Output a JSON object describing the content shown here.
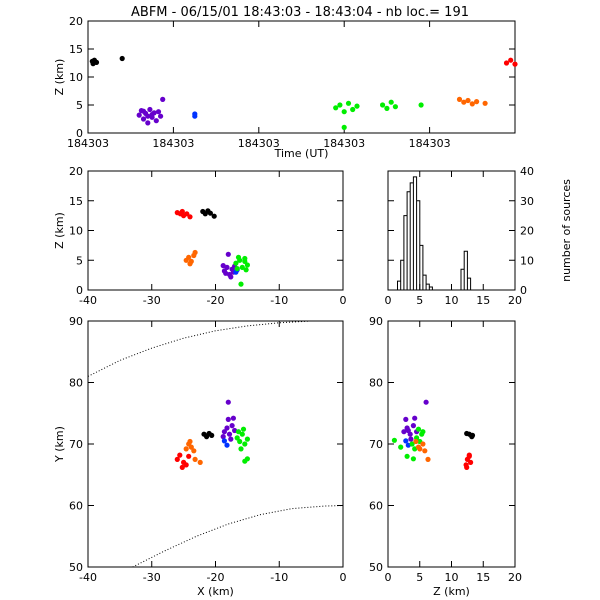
{
  "title": "ABFM - 06/15/01 18:43:03 - 18:43:04 - nb loc.=     191",
  "chart_data": [
    {
      "id": "time-height",
      "type": "scatter",
      "xlabel": "Time (UT)",
      "ylabel": "Z (km)",
      "ylim": [
        0,
        20
      ],
      "xlim": [
        0,
        1
      ],
      "yticks": [
        0,
        5,
        10,
        15,
        20
      ],
      "xticks": [
        {
          "v": 0.0,
          "label": "184303"
        },
        {
          "v": 0.2,
          "label": "184303"
        },
        {
          "v": 0.4,
          "label": "184303"
        },
        {
          "v": 0.6,
          "label": "184303"
        },
        {
          "v": 0.8,
          "label": "184303"
        }
      ],
      "series": [
        {
          "color": "#000000",
          "points": [
            [
              0.01,
              12.8
            ],
            [
              0.015,
              13.0
            ],
            [
              0.02,
              12.6
            ],
            [
              0.012,
              12.4
            ],
            [
              0.08,
              13.3
            ]
          ]
        },
        {
          "color": "#6600cc",
          "points": [
            [
              0.12,
              3.2
            ],
            [
              0.125,
              4.0
            ],
            [
              0.13,
              2.5
            ],
            [
              0.135,
              3.5
            ],
            [
              0.14,
              3.0
            ],
            [
              0.145,
              4.2
            ],
            [
              0.15,
              2.8
            ],
            [
              0.155,
              3.6
            ],
            [
              0.16,
              2.2
            ],
            [
              0.165,
              3.8
            ],
            [
              0.17,
              3.0
            ],
            [
              0.175,
              6.0
            ],
            [
              0.14,
              1.8
            ],
            [
              0.13,
              3.9
            ],
            [
              0.15,
              3.3
            ]
          ]
        },
        {
          "color": "#0033ff",
          "points": [
            [
              0.25,
              3.0
            ],
            [
              0.25,
              3.4
            ]
          ]
        },
        {
          "color": "#00ee00",
          "points": [
            [
              0.58,
              4.5
            ],
            [
              0.59,
              5.0
            ],
            [
              0.6,
              3.8
            ],
            [
              0.61,
              5.3
            ],
            [
              0.62,
              4.2
            ],
            [
              0.6,
              1.0
            ],
            [
              0.63,
              4.8
            ],
            [
              0.69,
              5.0
            ],
            [
              0.7,
              4.4
            ],
            [
              0.71,
              5.5
            ],
            [
              0.72,
              4.7
            ],
            [
              0.78,
              5.0
            ]
          ]
        },
        {
          "color": "#ff6600",
          "points": [
            [
              0.87,
              6.0
            ],
            [
              0.88,
              5.5
            ],
            [
              0.89,
              5.8
            ],
            [
              0.9,
              5.2
            ],
            [
              0.91,
              5.6
            ],
            [
              0.93,
              5.3
            ]
          ]
        },
        {
          "color": "#ff0000",
          "points": [
            [
              0.98,
              12.5
            ],
            [
              0.99,
              13.0
            ],
            [
              1.0,
              12.3
            ],
            [
              1.01,
              12.8
            ],
            [
              1.02,
              12.4
            ],
            [
              1.04,
              12.9
            ],
            [
              1.06,
              12.6
            ]
          ]
        }
      ]
    },
    {
      "id": "x-z",
      "type": "scatter",
      "xlabel": "",
      "ylabel": "Z (km)",
      "xlim": [
        -40,
        0
      ],
      "ylim": [
        0,
        20
      ],
      "xticks": [
        -40,
        -30,
        -20,
        -10,
        0
      ],
      "yticks": [
        0,
        5,
        10,
        15,
        20
      ],
      "series": [
        {
          "color": "#ff0000",
          "points": [
            [
              -26,
              13.0
            ],
            [
              -25.5,
              12.8
            ],
            [
              -25,
              12.5
            ],
            [
              -24.5,
              12.8
            ],
            [
              -24,
              12.3
            ],
            [
              -25.2,
              13.2
            ]
          ]
        },
        {
          "color": "#000000",
          "points": [
            [
              -22,
              13.2
            ],
            [
              -21.6,
              12.8
            ],
            [
              -21.2,
              13.3
            ],
            [
              -20.8,
              12.9
            ],
            [
              -20.2,
              12.4
            ]
          ]
        },
        {
          "color": "#6600cc",
          "points": [
            [
              -18.6,
              3.2
            ],
            [
              -18.2,
              3.8
            ],
            [
              -17.8,
              2.6
            ],
            [
              -17.4,
              3.5
            ],
            [
              -17.0,
              4.0
            ],
            [
              -17.6,
              2.2
            ],
            [
              -18.8,
              4.1
            ],
            [
              -17.2,
              3.0
            ],
            [
              -18.0,
              6.0
            ],
            [
              -18.4,
              2.8
            ]
          ]
        },
        {
          "color": "#0033ff",
          "points": [
            [
              -16.8,
              3.0
            ],
            [
              -16.6,
              3.4
            ]
          ]
        },
        {
          "color": "#00ee00",
          "points": [
            [
              -16.8,
              4.5
            ],
            [
              -16.2,
              5.0
            ],
            [
              -15.8,
              3.8
            ],
            [
              -15.4,
              5.3
            ],
            [
              -15.0,
              4.2
            ],
            [
              -16.0,
              1.0
            ],
            [
              -15.4,
              4.8
            ],
            [
              -16.4,
              5.5
            ],
            [
              -15.2,
              3.4
            ],
            [
              -16.6,
              3.6
            ]
          ]
        },
        {
          "color": "#ff6600",
          "points": [
            [
              -24.6,
              5.0
            ],
            [
              -24.2,
              5.5
            ],
            [
              -23.8,
              4.8
            ],
            [
              -23.4,
              5.8
            ],
            [
              -24.0,
              4.4
            ],
            [
              -23.2,
              6.3
            ]
          ]
        }
      ]
    },
    {
      "id": "height-histogram",
      "type": "bar",
      "xlabel": "",
      "ylabel": "number of sources",
      "xlim": [
        0,
        20
      ],
      "ylim": [
        0,
        40
      ],
      "xticks": [
        0,
        5,
        10,
        15,
        20
      ],
      "yticks": [
        0,
        10,
        20,
        30,
        40
      ],
      "bin_width": 0.5,
      "bins_start": [
        1.5,
        2.0,
        2.5,
        3.0,
        3.5,
        4.0,
        4.5,
        5.0,
        5.5,
        6.0,
        6.5,
        7.0,
        11.5,
        12.0,
        12.5,
        13.0
      ],
      "values": [
        3,
        10,
        25,
        33,
        36,
        38,
        30,
        15,
        5,
        2,
        1,
        0,
        7,
        13,
        4,
        0
      ]
    },
    {
      "id": "x-y",
      "type": "scatter",
      "xlabel": "X (km)",
      "ylabel": "Y (km)",
      "xlim": [
        -40,
        0
      ],
      "ylim": [
        50,
        90
      ],
      "xticks": [
        -40,
        -30,
        -20,
        -10,
        0
      ],
      "yticks": [
        50,
        60,
        70,
        80,
        90
      ],
      "series": [
        {
          "color": "#ff0000",
          "points": [
            [
              -26,
              67.5
            ],
            [
              -25.6,
              68.2
            ],
            [
              -25,
              67.0
            ],
            [
              -24.6,
              66.6
            ],
            [
              -24.2,
              68.0
            ],
            [
              -25.2,
              66.2
            ]
          ]
        },
        {
          "color": "#ff6600",
          "points": [
            [
              -24.6,
              69.2
            ],
            [
              -24.2,
              70.0
            ],
            [
              -23.8,
              69.5
            ],
            [
              -23.4,
              68.9
            ],
            [
              -24.0,
              70.4
            ],
            [
              -23.2,
              67.5
            ],
            [
              -22.4,
              67.0
            ]
          ]
        },
        {
          "color": "#000000",
          "points": [
            [
              -21.8,
              71.6
            ],
            [
              -21.4,
              71.2
            ],
            [
              -21.0,
              71.7
            ],
            [
              -20.6,
              71.4
            ]
          ]
        },
        {
          "color": "#6600cc",
          "points": [
            [
              -18.6,
              72.0
            ],
            [
              -18.2,
              72.6
            ],
            [
              -17.8,
              71.6
            ],
            [
              -17.4,
              73.0
            ],
            [
              -17.0,
              72.2
            ],
            [
              -18.0,
              74.0
            ],
            [
              -17.6,
              70.8
            ],
            [
              -18.8,
              71.2
            ],
            [
              -18.0,
              76.8
            ],
            [
              -17.2,
              74.2
            ]
          ]
        },
        {
          "color": "#0033ff",
          "points": [
            [
              -18.6,
              70.5
            ],
            [
              -18.2,
              69.8
            ]
          ]
        },
        {
          "color": "#00ee00",
          "points": [
            [
              -16.6,
              71.0
            ],
            [
              -16.2,
              70.4
            ],
            [
              -15.8,
              71.6
            ],
            [
              -15.4,
              70.0
            ],
            [
              -16.0,
              69.2
            ],
            [
              -15.0,
              70.8
            ],
            [
              -16.4,
              72.0
            ],
            [
              -15.6,
              72.4
            ],
            [
              -15.0,
              67.6
            ],
            [
              -15.4,
              67.2
            ]
          ]
        }
      ],
      "curves": [
        {
          "style": "dotted",
          "points": [
            [
              -40,
              81
            ],
            [
              -35,
              83.6
            ],
            [
              -30,
              85.6
            ],
            [
              -25,
              87.2
            ],
            [
              -20,
              88.4
            ],
            [
              -15,
              89.2
            ],
            [
              -10,
              89.7
            ],
            [
              -5,
              90
            ],
            [
              0,
              90
            ]
          ]
        },
        {
          "style": "dotted",
          "points": [
            [
              -33,
              50
            ],
            [
              -28,
              52.6
            ],
            [
              -23,
              55.0
            ],
            [
              -18,
              57.0
            ],
            [
              -13,
              58.5
            ],
            [
              -8,
              59.5
            ],
            [
              -3,
              59.9
            ],
            [
              0,
              60
            ]
          ]
        }
      ]
    },
    {
      "id": "z-y",
      "type": "scatter",
      "xlabel": "Z (km)",
      "ylabel": "",
      "xlim": [
        0,
        20
      ],
      "ylim": [
        50,
        90
      ],
      "xticks": [
        0,
        5,
        10,
        15,
        20
      ],
      "yticks": [
        50,
        60,
        70,
        80,
        90
      ],
      "series": [
        {
          "color": "#6600cc",
          "points": [
            [
              2.5,
              72.0
            ],
            [
              3.0,
              72.6
            ],
            [
              3.5,
              71.6
            ],
            [
              4.0,
              73.0
            ],
            [
              3.2,
              72.2
            ],
            [
              2.8,
              74.0
            ],
            [
              4.5,
              72.0
            ],
            [
              3.6,
              70.8
            ],
            [
              6.0,
              76.8
            ],
            [
              4.2,
              74.2
            ]
          ]
        },
        {
          "color": "#0033ff",
          "points": [
            [
              2.8,
              70.5
            ],
            [
              3.2,
              69.8
            ]
          ]
        },
        {
          "color": "#00ee00",
          "points": [
            [
              1.0,
              70.6
            ],
            [
              4.5,
              71.0
            ],
            [
              5.0,
              70.4
            ],
            [
              5.3,
              71.6
            ],
            [
              3.8,
              70.0
            ],
            [
              4.2,
              69.2
            ],
            [
              5.5,
              72.0
            ],
            [
              4.8,
              72.4
            ],
            [
              3.0,
              68.0
            ],
            [
              4.0,
              67.6
            ],
            [
              2.0,
              69.5
            ]
          ]
        },
        {
          "color": "#ff6600",
          "points": [
            [
              5.0,
              69.2
            ],
            [
              5.5,
              70.0
            ],
            [
              4.8,
              69.5
            ],
            [
              5.8,
              68.9
            ],
            [
              4.4,
              70.4
            ],
            [
              6.3,
              67.5
            ]
          ]
        },
        {
          "color": "#000000",
          "points": [
            [
              12.8,
              71.6
            ],
            [
              13.2,
              71.2
            ],
            [
              12.4,
              71.7
            ],
            [
              13.3,
              71.4
            ]
          ]
        },
        {
          "color": "#ff0000",
          "points": [
            [
              12.5,
              67.5
            ],
            [
              12.8,
              68.2
            ],
            [
              13.0,
              67.0
            ],
            [
              12.3,
              66.6
            ],
            [
              12.8,
              68.0
            ],
            [
              12.4,
              66.2
            ]
          ]
        }
      ]
    }
  ]
}
